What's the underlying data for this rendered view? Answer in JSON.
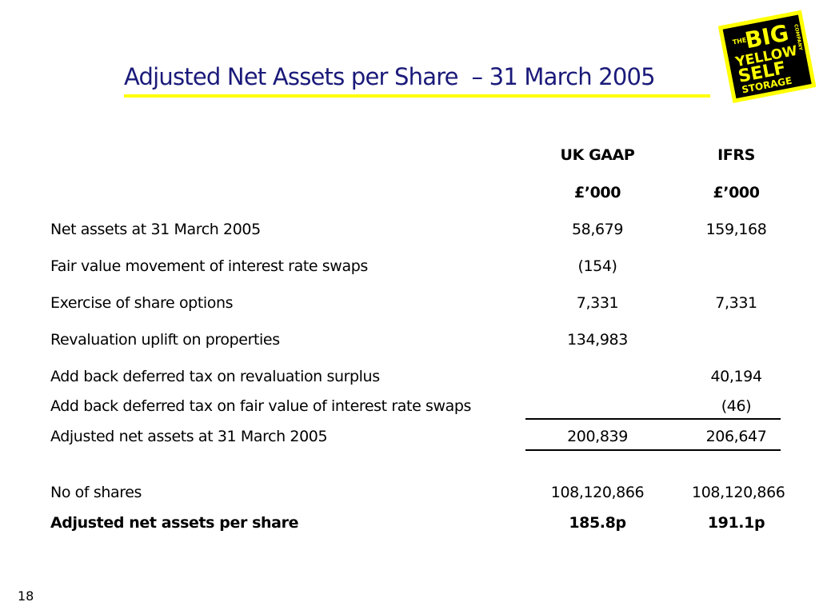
{
  "slide": {
    "title": "Adjusted Net Assets per Share  – 31 March 2005",
    "page_number": "18"
  },
  "logo": {
    "text_the": "THE",
    "text_big": "BIG",
    "text_yellow": "YELLOW",
    "text_self": "SELF",
    "text_storage": "STORAGE",
    "text_company": "COMPANY",
    "background_color": "#ffff00",
    "panel_color": "#000000"
  },
  "table": {
    "col_headers": [
      "UK GAAP",
      "IFRS"
    ],
    "col_units": [
      "£’000",
      "£’000"
    ],
    "rows": [
      {
        "label": "Net assets at 31 March 2005",
        "uk_gaap": "58,679",
        "ifrs": "159,168"
      },
      {
        "label": "Fair value movement of interest rate swaps",
        "uk_gaap": "(154)",
        "ifrs": ""
      },
      {
        "label": "Exercise of share options",
        "uk_gaap": "7,331",
        "ifrs": "7,331"
      },
      {
        "label": "Revaluation uplift on properties",
        "uk_gaap": "134,983",
        "ifrs": ""
      },
      {
        "label": "Add back deferred tax on revaluation surplus",
        "uk_gaap": "",
        "ifrs": "40,194"
      },
      {
        "label": "Add back deferred tax on fair value of interest rate swaps",
        "uk_gaap": "",
        "ifrs": "(46)"
      },
      {
        "label": "Adjusted net assets at 31 March 2005",
        "uk_gaap": "200,839",
        "ifrs": "206,647"
      },
      {
        "label": "No of shares",
        "uk_gaap": "108,120,866",
        "ifrs": "108,120,866"
      },
      {
        "label": "Adjusted net assets per share",
        "uk_gaap": "185.8p",
        "ifrs": "191.1p"
      }
    ]
  },
  "colors": {
    "title": "#1a1a7a",
    "title_underline": "#ffff00",
    "text": "#000000"
  }
}
